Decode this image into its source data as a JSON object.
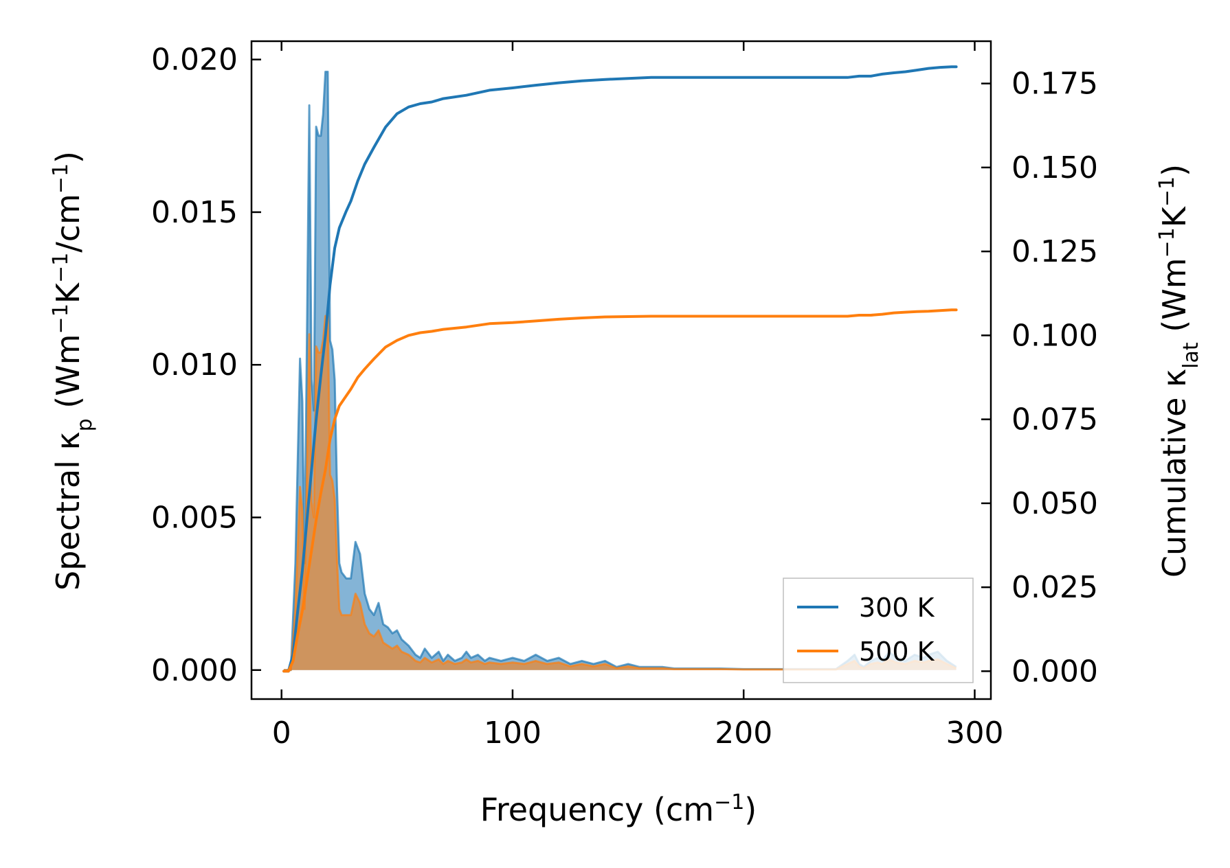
{
  "chart_data": {
    "type": "line",
    "xlabel": "Frequency (cm⁻¹)",
    "ylabel_left": "Spectral κₚ (Wm⁻¹K⁻¹/cm⁻¹)",
    "ylabel_right": "Cumulative κₗₐₜ (Wm⁻¹K⁻¹)",
    "xlim": [
      -13,
      307
    ],
    "ylim_left": [
      -0.00095,
      0.0206
    ],
    "ylim_right": [
      -0.0083,
      0.1876
    ],
    "xticks": [
      0,
      100,
      200,
      300
    ],
    "xtick_labels": [
      "0",
      "100",
      "200",
      "300"
    ],
    "yticks_left": [
      0,
      0.005,
      0.01,
      0.015,
      0.02
    ],
    "ytick_labels_left": [
      "0.000",
      "0.005",
      "0.010",
      "0.015",
      "0.020"
    ],
    "yticks_right": [
      0,
      0.025,
      0.05,
      0.075,
      0.1,
      0.125,
      0.15,
      0.175
    ],
    "ytick_labels_right": [
      "0.000",
      "0.025",
      "0.050",
      "0.075",
      "0.100",
      "0.125",
      "0.150",
      "0.175"
    ],
    "legend_position": "lower-right",
    "series": [
      {
        "name": "300 K",
        "color": "#1f77b4",
        "spectral": {
          "x": [
            1,
            4,
            6,
            8,
            9,
            10,
            11,
            12,
            13,
            14,
            15,
            16,
            17,
            18,
            19,
            20,
            21,
            22,
            23,
            24,
            25,
            26,
            28,
            30,
            32,
            34,
            36,
            38,
            40,
            42,
            44,
            46,
            48,
            50,
            52,
            55,
            58,
            60,
            62,
            65,
            68,
            70,
            72,
            75,
            78,
            80,
            82,
            85,
            88,
            90,
            95,
            100,
            105,
            110,
            115,
            120,
            125,
            130,
            135,
            140,
            145,
            150,
            155,
            160,
            165,
            170,
            180,
            190,
            200,
            210,
            220,
            230,
            240,
            245,
            248,
            250,
            252,
            255,
            258,
            260,
            263,
            266,
            270,
            274,
            278,
            280,
            284,
            288,
            292
          ],
          "y": [
            0,
            0,
            0.0035,
            0.0102,
            0.0088,
            0.0035,
            0.011,
            0.0185,
            0.0095,
            0.0085,
            0.0178,
            0.0175,
            0.0175,
            0.0182,
            0.0196,
            0.0196,
            0.0108,
            0.0105,
            0.0095,
            0.006,
            0.0035,
            0.0032,
            0.003,
            0.003,
            0.0042,
            0.0038,
            0.0025,
            0.002,
            0.0018,
            0.0022,
            0.0015,
            0.0014,
            0.0012,
            0.0013,
            0.001,
            0.0008,
            0.0005,
            0.0004,
            0.0007,
            0.0004,
            0.0006,
            0.0003,
            0.0005,
            0.0003,
            0.0004,
            0.0006,
            0.0004,
            0.0005,
            0.0003,
            0.0004,
            0.0003,
            0.0004,
            0.0003,
            0.0005,
            0.0003,
            0.0004,
            0.0002,
            0.0003,
            0.0002,
            0.0003,
            0.0001,
            0.0002,
            0.0001,
            0.0001,
            0.0001,
            5e-05,
            5e-05,
            5e-05,
            3e-05,
            3e-05,
            3e-05,
            3e-05,
            3e-05,
            0.0003,
            0.0005,
            0.0002,
            0.0001,
            0.0003,
            0.0004,
            0.0003,
            0.0006,
            0.0004,
            0.0003,
            0.0005,
            0.0004,
            0.0005,
            0.0006,
            0.0003,
            0.0001
          ]
        },
        "cumulative": {
          "x": [
            1,
            3,
            5,
            7,
            9,
            11,
            13,
            15,
            17,
            19,
            21,
            23,
            25,
            28,
            30,
            33,
            36,
            40,
            45,
            50,
            55,
            60,
            65,
            70,
            80,
            90,
            100,
            110,
            120,
            130,
            140,
            150,
            160,
            170,
            180,
            200,
            220,
            240,
            245,
            250,
            255,
            260,
            265,
            270,
            275,
            280,
            285,
            290,
            292
          ],
          "y": [
            0,
            0,
            0.005,
            0.018,
            0.03,
            0.045,
            0.06,
            0.075,
            0.088,
            0.1,
            0.115,
            0.126,
            0.132,
            0.137,
            0.14,
            0.146,
            0.151,
            0.156,
            0.162,
            0.166,
            0.168,
            0.169,
            0.1695,
            0.1705,
            0.1715,
            0.173,
            0.1737,
            0.1745,
            0.1752,
            0.1758,
            0.1762,
            0.1765,
            0.1768,
            0.1768,
            0.1768,
            0.1768,
            0.1768,
            0.1768,
            0.1768,
            0.1772,
            0.1772,
            0.1778,
            0.1782,
            0.1785,
            0.179,
            0.1795,
            0.1798,
            0.18,
            0.18
          ]
        }
      },
      {
        "name": "500 K",
        "color": "#ff7f0e",
        "spectral": {
          "x": [
            1,
            4,
            6,
            8,
            9,
            10,
            11,
            12,
            13,
            14,
            15,
            16,
            17,
            18,
            19,
            20,
            21,
            22,
            23,
            24,
            25,
            26,
            28,
            30,
            32,
            34,
            36,
            38,
            40,
            42,
            44,
            46,
            48,
            50,
            52,
            55,
            58,
            60,
            62,
            65,
            68,
            70,
            72,
            75,
            78,
            80,
            82,
            85,
            88,
            90,
            95,
            100,
            105,
            110,
            115,
            120,
            125,
            130,
            135,
            140,
            145,
            150,
            155,
            160,
            165,
            170,
            180,
            190,
            200,
            210,
            220,
            230,
            240,
            245,
            248,
            250,
            252,
            255,
            258,
            260,
            263,
            266,
            270,
            274,
            278,
            280,
            284,
            288,
            292
          ],
          "y": [
            0,
            0,
            0.002,
            0.006,
            0.0052,
            0.002,
            0.0065,
            0.011,
            0.0055,
            0.005,
            0.0106,
            0.0104,
            0.0104,
            0.0108,
            0.0116,
            0.0116,
            0.0064,
            0.0062,
            0.0056,
            0.0036,
            0.002,
            0.0018,
            0.0018,
            0.0018,
            0.0025,
            0.0022,
            0.0015,
            0.0012,
            0.0011,
            0.0013,
            0.0009,
            0.0008,
            0.0007,
            0.0008,
            0.0006,
            0.0005,
            0.0003,
            0.00025,
            0.0004,
            0.00025,
            0.00035,
            0.0002,
            0.0003,
            0.0002,
            0.00025,
            0.00035,
            0.00025,
            0.0003,
            0.0002,
            0.00025,
            0.0002,
            0.00025,
            0.0002,
            0.0003,
            0.0002,
            0.00025,
            0.00012,
            0.0002,
            0.00012,
            0.0002,
            6e-05,
            0.00012,
            6e-05,
            6e-05,
            6e-05,
            3e-05,
            3e-05,
            3e-05,
            2e-05,
            2e-05,
            2e-05,
            2e-05,
            2e-05,
            0.0002,
            0.0003,
            0.00012,
            6e-05,
            0.0002,
            0.00025,
            0.0002,
            0.00035,
            0.00025,
            0.0002,
            0.0003,
            0.00025,
            0.0003,
            0.00035,
            0.0002,
            6e-05
          ]
        },
        "cumulative": {
          "x": [
            1,
            3,
            5,
            7,
            9,
            11,
            13,
            15,
            17,
            19,
            21,
            23,
            25,
            28,
            30,
            33,
            36,
            40,
            45,
            50,
            55,
            60,
            65,
            70,
            80,
            90,
            100,
            110,
            120,
            130,
            140,
            150,
            160,
            170,
            180,
            200,
            220,
            240,
            245,
            250,
            255,
            260,
            265,
            270,
            275,
            280,
            285,
            290,
            292
          ],
          "y": [
            0,
            0,
            0.003,
            0.011,
            0.018,
            0.027,
            0.036,
            0.045,
            0.053,
            0.06,
            0.069,
            0.075,
            0.079,
            0.082,
            0.084,
            0.0875,
            0.09,
            0.093,
            0.0965,
            0.0985,
            0.1,
            0.1008,
            0.1012,
            0.1018,
            0.1025,
            0.1035,
            0.1038,
            0.1043,
            0.1048,
            0.1052,
            0.1055,
            0.1056,
            0.1057,
            0.1057,
            0.1057,
            0.1057,
            0.1057,
            0.1057,
            0.1057,
            0.106,
            0.106,
            0.1063,
            0.1067,
            0.1069,
            0.1071,
            0.1072,
            0.1074,
            0.1076,
            0.1076
          ]
        }
      }
    ]
  }
}
